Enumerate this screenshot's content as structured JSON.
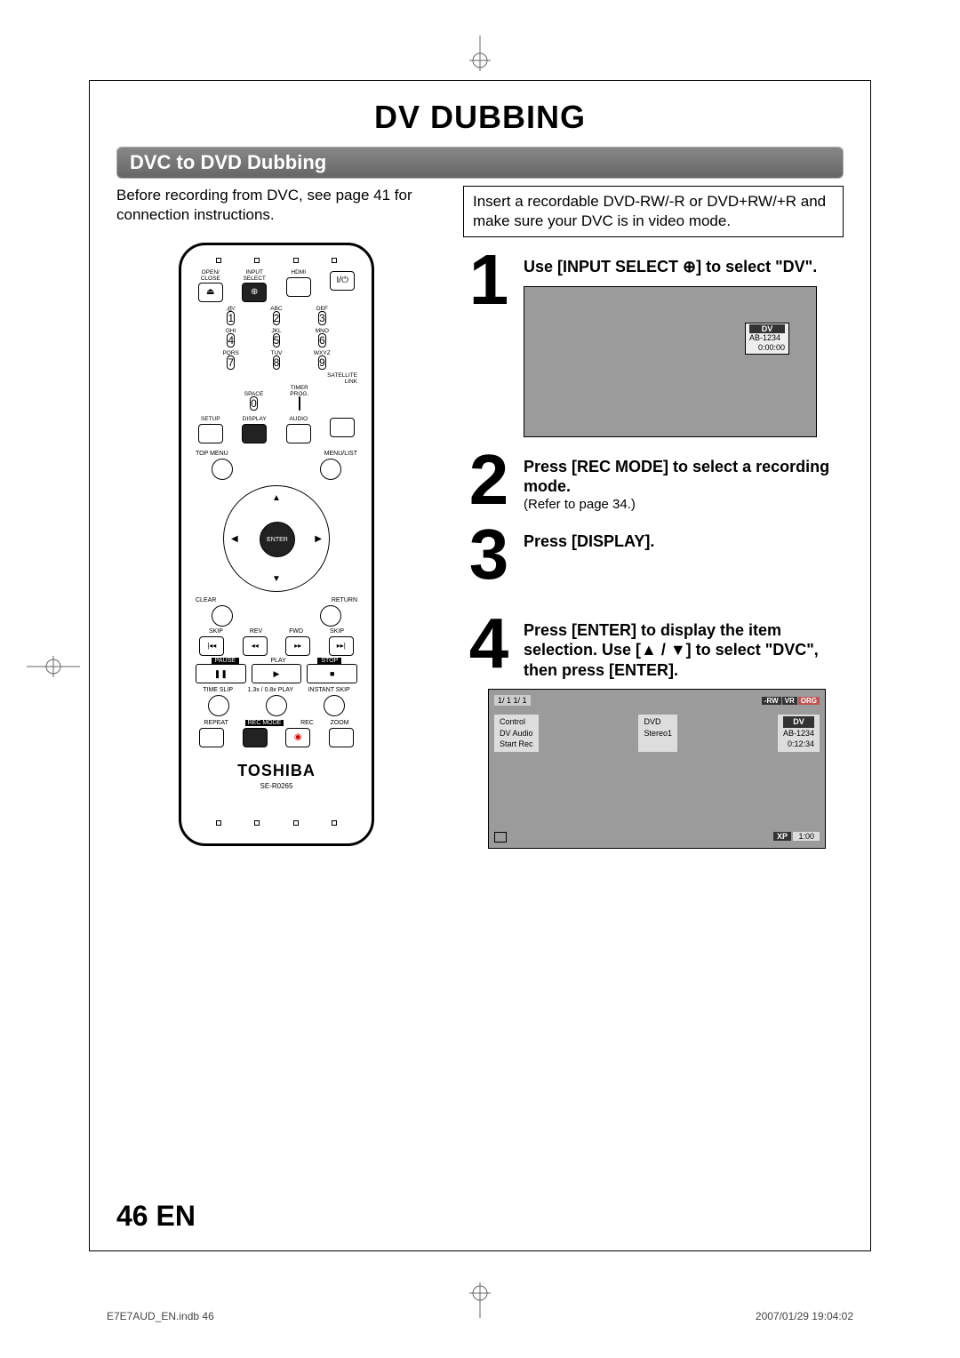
{
  "title": "DV DUBBING",
  "section": "DVC to DVD Dubbing",
  "intro": "Before recording from DVC, see page 41 for connection instructions.",
  "note": "Insert a recordable DVD-RW/-R or DVD+RW/+R and make sure your DVC is in video mode.",
  "remote": {
    "top_row": [
      {
        "label": "OPEN/\nCLOSE",
        "sym": "⏏"
      },
      {
        "label": "INPUT\nSELECT",
        "sym": "⊕",
        "dark": true
      },
      {
        "label": "HDMI",
        "sym": ""
      },
      {
        "label": "",
        "sym": "I/⏻"
      }
    ],
    "num_labels": [
      ".@/:",
      "ABC",
      "DEF",
      "GHI",
      "JKL",
      "MNO",
      "PQRS",
      "TUV",
      "WXYZ"
    ],
    "satlink": "SATELLITE\nLINK",
    "space": "SPACE",
    "timer": "TIMER\nPROG.",
    "setup_row": [
      {
        "label": "SETUP"
      },
      {
        "label": "DISPLAY",
        "dark": true
      },
      {
        "label": "AUDIO"
      },
      {
        "label": ""
      }
    ],
    "topmenu": "TOP MENU",
    "menulist": "MENU/LIST",
    "enter": "ENTER",
    "clear": "CLEAR",
    "return": "RETURN",
    "skip_row": [
      "SKIP",
      "REV",
      "FWD",
      "SKIP"
    ],
    "skip_sym": [
      "|◂◂",
      "◂◂",
      "▸▸",
      "▸▸|"
    ],
    "trans_labels": [
      "PAUSE",
      "PLAY",
      "STOP"
    ],
    "trans_sym": [
      "❚❚",
      "▶",
      "■"
    ],
    "mini_row": [
      "TIME SLIP",
      "1.3x / 0.8x PLAY",
      "INSTANT SKIP"
    ],
    "bottom_labels": [
      "REPEAT",
      "REC MODE",
      "REC",
      "ZOOM"
    ],
    "brand": "TOSHIBA",
    "model": "SE-R0265"
  },
  "steps": [
    {
      "n": "1",
      "title": "Use [INPUT SELECT ⊕] to select \"DV\".",
      "sub": ""
    },
    {
      "n": "2",
      "title": "Press [REC MODE] to select a recording mode.",
      "sub": "(Refer to page 34.)"
    },
    {
      "n": "3",
      "title": "Press [DISPLAY].",
      "sub": ""
    },
    {
      "n": "4",
      "title": "Press [ENTER] to display the item selection. Use [▲ / ▼] to select \"DVC\", then press [ENTER].",
      "sub": ""
    }
  ],
  "screen1": {
    "dv": "DV",
    "code": "AB-1234",
    "time": "0:00:00"
  },
  "screen2": {
    "top_left": "1/  1       1/  1",
    "badges": [
      "-RW",
      "VR",
      "ORG"
    ],
    "left_rows": [
      "Control",
      "DV Audio",
      "Start Rec"
    ],
    "mid_rows": [
      "DVD",
      "Stereo1",
      ""
    ],
    "right": {
      "dv": "DV",
      "code": "AB-1234",
      "time": "0:12:34"
    },
    "xp": "XP",
    "foot_time": "1:00"
  },
  "page_num": "46  EN",
  "footer_left": "E7E7AUD_EN.indb   46",
  "footer_right": "2007/01/29   19:04:02"
}
